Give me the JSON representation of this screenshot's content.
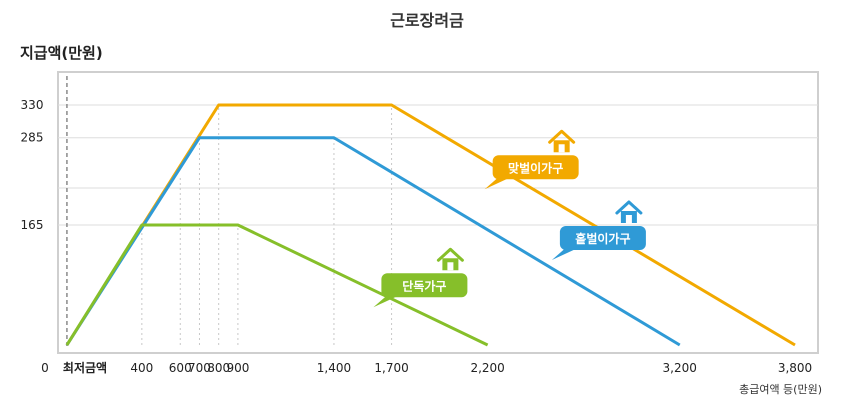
{
  "chart_data": {
    "type": "line",
    "title": "근로장려금",
    "ylabel": "지급액(만원)",
    "xlabel": "총급여액 등(만원)",
    "origin_label": "0",
    "min_wage_label": "최저금액",
    "min_wage_x": 10,
    "xlim": [
      0,
      3800
    ],
    "ylim": [
      0,
      330
    ],
    "x_ticks": [
      400,
      600,
      700,
      800,
      900,
      1400,
      1700,
      2200,
      3200,
      3800
    ],
    "x_tick_labels": [
      "400",
      "600",
      "700",
      "800",
      "900",
      "1,400",
      "1,700",
      "2,200",
      "3,200",
      "3,800"
    ],
    "y_ticks": [
      165,
      285,
      330
    ],
    "y_tick_labels": [
      "165",
      "285",
      "330"
    ],
    "grid": true,
    "series": [
      {
        "name": "맞벌이가구",
        "color": "#f2a900",
        "x": [
          10,
          800,
          1700,
          3800
        ],
        "y": [
          0,
          330,
          330,
          0
        ]
      },
      {
        "name": "홑벌이가구",
        "color": "#2f9ad6",
        "x": [
          10,
          700,
          1400,
          3200
        ],
        "y": [
          0,
          285,
          285,
          0
        ]
      },
      {
        "name": "단독가구",
        "color": "#86bf2a",
        "x": [
          10,
          400,
          900,
          2200
        ],
        "y": [
          0,
          165,
          165,
          0
        ]
      }
    ]
  }
}
